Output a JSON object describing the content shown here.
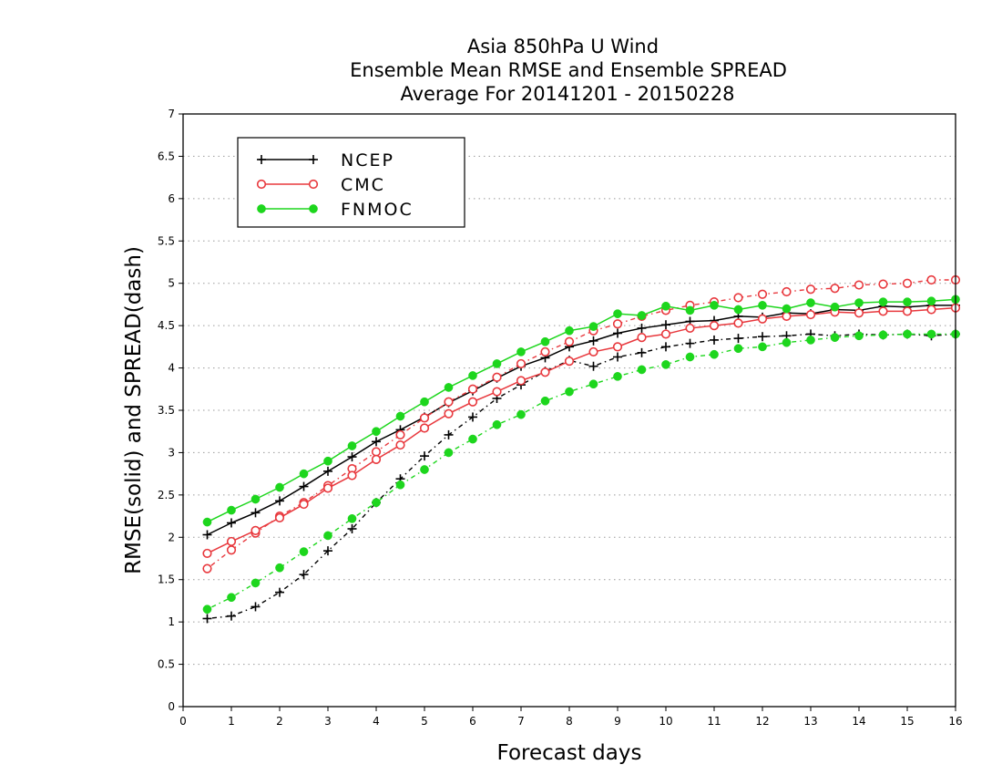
{
  "chart_data": {
    "type": "line",
    "title_lines": [
      "Asia 850hPa U Wind",
      "Ensemble Mean RMSE and Ensemble SPREAD",
      "Average For 20141201 - 20150228"
    ],
    "xlabel": "Forecast days",
    "ylabel": "RMSE(solid) and SPREAD(dash)",
    "xlim": [
      0,
      16
    ],
    "ylim": [
      0,
      7
    ],
    "x_ticks": [
      "0",
      "1",
      "2",
      "3",
      "4",
      "5",
      "6",
      "7",
      "8",
      "9",
      "10",
      "11",
      "12",
      "13",
      "14",
      "15",
      "16"
    ],
    "y_ticks": [
      "0",
      "0.5",
      "1",
      "1.5",
      "2",
      "2.5",
      "3",
      "3.5",
      "4",
      "4.5",
      "5",
      "5.5",
      "6",
      "6.5",
      "7"
    ],
    "grid": "horizontal dotted",
    "legend_position": "top-left",
    "x": [
      0.5,
      1,
      1.5,
      2,
      2.5,
      3,
      3.5,
      4,
      4.5,
      5,
      5.5,
      6,
      6.5,
      7,
      7.5,
      8,
      8.5,
      9,
      9.5,
      10,
      10.5,
      11,
      11.5,
      12,
      12.5,
      13,
      13.5,
      14,
      14.5,
      15,
      15.5,
      16
    ],
    "series": [
      {
        "name": "NCEP",
        "color": "#000000",
        "marker": "plus",
        "rmse": [
          2.03,
          2.17,
          2.29,
          2.43,
          2.6,
          2.78,
          2.95,
          3.13,
          3.27,
          3.42,
          3.59,
          3.73,
          3.88,
          4.02,
          4.12,
          4.25,
          4.32,
          4.41,
          4.47,
          4.51,
          4.55,
          4.56,
          4.61,
          4.6,
          4.65,
          4.64,
          4.69,
          4.68,
          4.73,
          4.72,
          4.74,
          4.74
        ],
        "spread": [
          1.04,
          1.07,
          1.18,
          1.35,
          1.56,
          1.84,
          2.1,
          2.41,
          2.69,
          2.96,
          3.21,
          3.42,
          3.64,
          3.8,
          3.96,
          4.09,
          4.02,
          4.13,
          4.18,
          4.25,
          4.29,
          4.33,
          4.35,
          4.37,
          4.38,
          4.4,
          4.38,
          4.4,
          4.39,
          4.4,
          4.38,
          4.4
        ]
      },
      {
        "name": "CMC",
        "color": "#e8383d",
        "marker": "open-circle",
        "rmse": [
          1.81,
          1.95,
          2.08,
          2.23,
          2.39,
          2.58,
          2.73,
          2.92,
          3.09,
          3.29,
          3.46,
          3.6,
          3.72,
          3.85,
          3.95,
          4.08,
          4.19,
          4.25,
          4.36,
          4.4,
          4.47,
          4.5,
          4.53,
          4.58,
          4.61,
          4.63,
          4.66,
          4.65,
          4.67,
          4.67,
          4.69,
          4.71
        ],
        "spread": [
          1.63,
          1.85,
          2.05,
          2.25,
          2.41,
          2.61,
          2.81,
          3.01,
          3.21,
          3.41,
          3.6,
          3.75,
          3.89,
          4.05,
          4.19,
          4.31,
          4.44,
          4.52,
          4.61,
          4.68,
          4.74,
          4.78,
          4.83,
          4.87,
          4.9,
          4.93,
          4.94,
          4.98,
          4.99,
          5.0,
          5.04,
          5.04
        ]
      },
      {
        "name": "FNMOC",
        "color": "#1dd61d",
        "marker": "filled-circle",
        "rmse": [
          2.18,
          2.32,
          2.45,
          2.59,
          2.75,
          2.9,
          3.08,
          3.25,
          3.43,
          3.6,
          3.77,
          3.91,
          4.05,
          4.19,
          4.31,
          4.44,
          4.49,
          4.64,
          4.62,
          4.73,
          4.68,
          4.74,
          4.69,
          4.74,
          4.7,
          4.77,
          4.72,
          4.77,
          4.78,
          4.78,
          4.79,
          4.81
        ],
        "spread": [
          1.15,
          1.29,
          1.46,
          1.64,
          1.83,
          2.02,
          2.22,
          2.41,
          2.62,
          2.8,
          3.0,
          3.16,
          3.33,
          3.45,
          3.61,
          3.72,
          3.81,
          3.9,
          3.98,
          4.04,
          4.13,
          4.16,
          4.23,
          4.25,
          4.3,
          4.33,
          4.36,
          4.38,
          4.39,
          4.4,
          4.4,
          4.4
        ]
      }
    ]
  }
}
